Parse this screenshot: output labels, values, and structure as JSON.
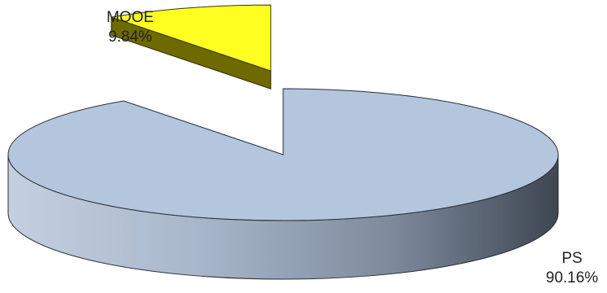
{
  "chart_data": {
    "type": "pie",
    "title": "",
    "categories": [
      "PS",
      "MOOE"
    ],
    "values": [
      90.16,
      9.84
    ],
    "value_labels": [
      "90.16%",
      "9.84%"
    ],
    "exploded": [
      "MOOE"
    ],
    "style": "3d",
    "colors": {
      "PS": "#b4c6de",
      "MOOE": "#ffff22"
    },
    "legend": "none"
  }
}
